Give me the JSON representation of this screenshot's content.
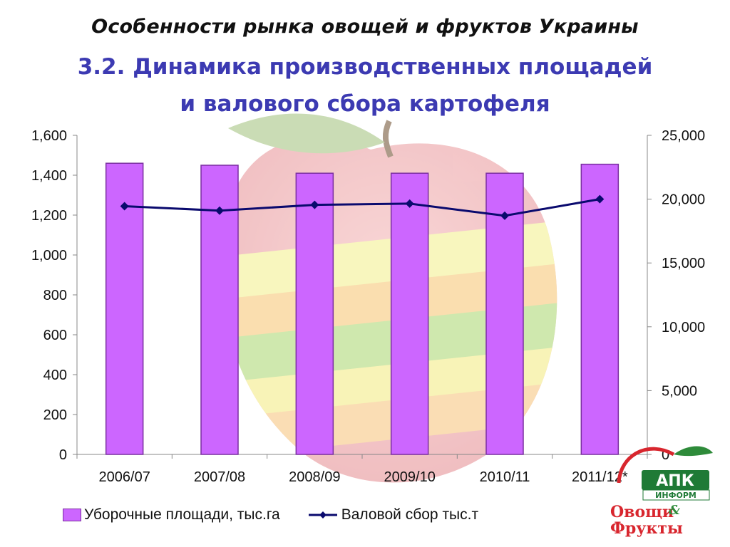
{
  "slide": {
    "title_line1": "Особенности рынка овощей и фруктов Украины",
    "title_line2": "3.2. Динамика производственных площадей",
    "title_line3": "и  валового сбора картофеля"
  },
  "colors": {
    "bar_fill": "#cc66ff",
    "bar_stroke": "#7a2fa0",
    "line": "#0a0a6e",
    "title_blue": "#3c3ab2"
  },
  "logo": {
    "top_text": "АПК",
    "sub_text": "ИНФОРМ",
    "word1": "Овощи",
    "amp": "&",
    "word2": "Фрукты"
  },
  "chart_data": {
    "type": "bar",
    "categories": [
      "2006/07",
      "2007/08",
      "2008/09",
      "2009/10",
      "2010/11",
      "2011/12*"
    ],
    "series": [
      {
        "name": "Уборочные площади, тыс.га",
        "type": "bar",
        "axis": "left",
        "values": [
          1460,
          1450,
          1410,
          1410,
          1410,
          1455
        ]
      },
      {
        "name": "Валовой сбор тыс.т",
        "type": "line",
        "axis": "right",
        "values": [
          19450,
          19100,
          19550,
          19650,
          18700,
          20000
        ]
      }
    ],
    "left_axis": {
      "ylim": [
        0,
        1600
      ],
      "ticks": [
        0,
        200,
        400,
        600,
        800,
        1000,
        1200,
        1400,
        1600
      ],
      "tick_labels": [
        "0",
        "200",
        "400",
        "600",
        "800",
        "1,000",
        "1,200",
        "1,400",
        "1,600"
      ]
    },
    "right_axis": {
      "ylim": [
        0,
        25000
      ],
      "ticks": [
        0,
        5000,
        10000,
        15000,
        20000,
        25000
      ],
      "tick_labels": [
        "0",
        "5,000",
        "10,000",
        "15,000",
        "20,000",
        "25,000"
      ]
    },
    "grid": false,
    "legend_position": "bottom"
  }
}
